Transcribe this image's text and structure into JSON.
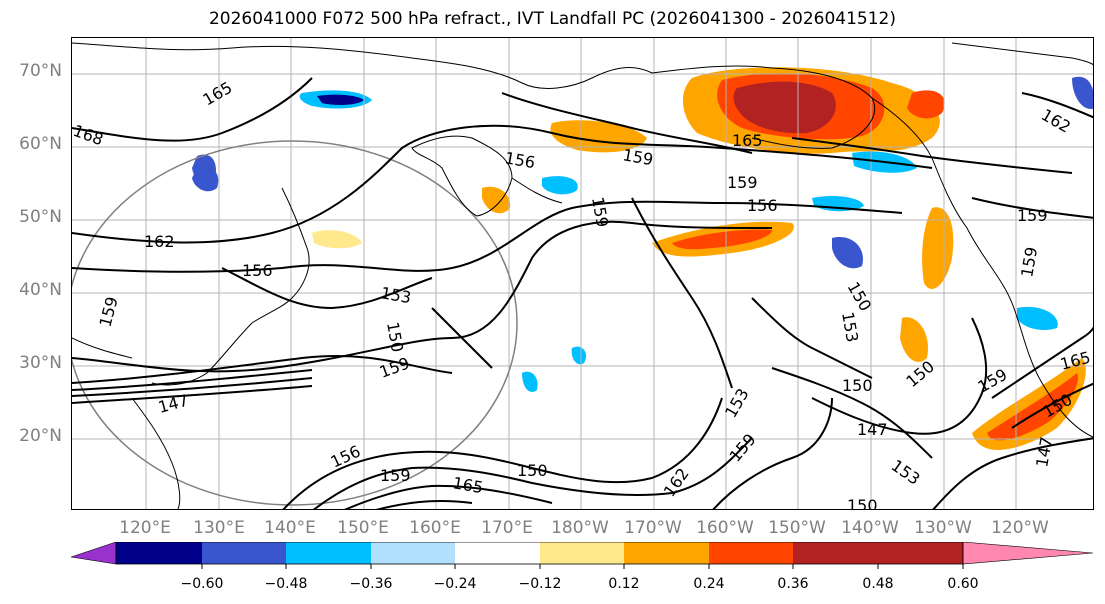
{
  "title": "2026041000 F072 500 hPa refract., IVT Landfall PC (2026041300 - 2026041512)",
  "lat_labels": [
    "70°N",
    "60°N",
    "50°N",
    "40°N",
    "30°N",
    "20°N"
  ],
  "lon_labels": [
    "120°E",
    "130°E",
    "140°E",
    "150°E",
    "160°E",
    "170°E",
    "180°W",
    "170°W",
    "160°W",
    "150°W",
    "140°W",
    "130°W",
    "120°W"
  ],
  "contour_labels": [
    "165",
    "168",
    "162",
    "156",
    "153",
    "150",
    "159",
    "147",
    "156",
    "159",
    "165",
    "159",
    "156",
    "159",
    "165",
    "156",
    "159",
    "159",
    "153",
    "150",
    "150",
    "147",
    "153",
    "159",
    "162",
    "150",
    "150",
    "159",
    "147",
    "159",
    "159",
    "162",
    "153",
    "150",
    "150",
    "165"
  ],
  "colorbar": {
    "ticks": [
      "−0.60",
      "−0.48",
      "−0.36",
      "−0.24",
      "−0.12",
      "0.12",
      "0.24",
      "0.36",
      "0.48",
      "0.60"
    ],
    "colors": [
      "#9932CC",
      "#00008B",
      "#3A56CE",
      "#00BFFF",
      "#B0E0FB",
      "#FFFFFF",
      "#FFE98C",
      "#FFA500",
      "#FF4500",
      "#B22222",
      "#FF87B0"
    ]
  }
}
